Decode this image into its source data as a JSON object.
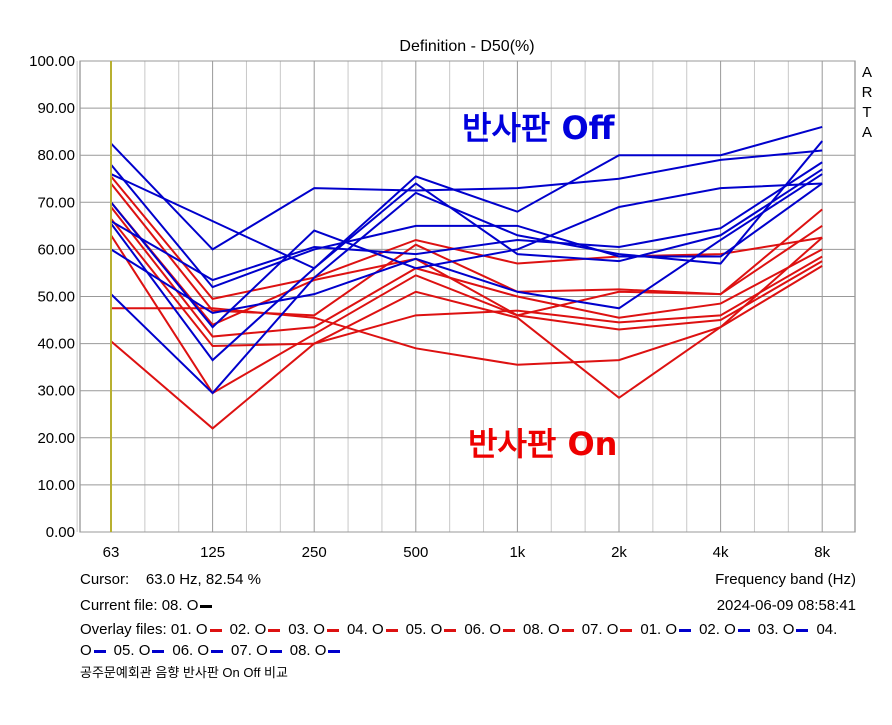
{
  "chart_data": {
    "type": "line",
    "title": "Definition - D50(%)",
    "xlabel": "Frequency band (Hz)",
    "ylabel": "",
    "categories": [
      "63",
      "125",
      "250",
      "500",
      "1k",
      "2k",
      "4k",
      "8k"
    ],
    "ylim": [
      0,
      100
    ],
    "yticks": [
      "0.00",
      "10.00",
      "20.00",
      "30.00",
      "40.00",
      "50.00",
      "60.00",
      "70.00",
      "80.00",
      "90.00",
      "100.00"
    ],
    "grid": true,
    "side_label": [
      "A",
      "R",
      "T",
      "A"
    ],
    "annotations": [
      {
        "text": "반사판 Off",
        "color": "#0000dd"
      },
      {
        "text": "반사판 On",
        "color": "#ee0000"
      }
    ],
    "series": [
      {
        "name": "01. O (On)",
        "color": "#dd1111",
        "values": [
          75.5,
          49.5,
          54,
          62,
          57,
          58.5,
          59,
          62.5
        ]
      },
      {
        "name": "02. O (On)",
        "color": "#dd1111",
        "values": [
          74,
          47,
          46,
          61,
          51,
          51.5,
          50.5,
          68.5
        ]
      },
      {
        "name": "03. O (On)",
        "color": "#dd1111",
        "values": [
          70,
          44,
          53.5,
          58,
          46,
          51,
          50.5,
          65
        ]
      },
      {
        "name": "04. O (On)",
        "color": "#dd1111",
        "values": [
          69,
          41.5,
          43.5,
          56,
          50,
          45.5,
          48.5,
          60
        ]
      },
      {
        "name": "05. O (On)",
        "color": "#dd1111",
        "values": [
          66.5,
          39.5,
          40,
          46,
          47,
          44.5,
          46,
          58.5
        ]
      },
      {
        "name": "06. O (On)",
        "color": "#dd1111",
        "values": [
          63,
          29.5,
          42,
          54.5,
          46,
          43,
          45,
          57.5
        ]
      },
      {
        "name": "08. O (On)",
        "color": "#dd1111",
        "values": [
          47.5,
          47.5,
          45.5,
          39,
          35.5,
          36.5,
          43.5,
          62.5
        ]
      },
      {
        "name": "07. O (On)",
        "color": "#dd1111",
        "values": [
          40.5,
          22,
          40,
          51,
          45.5,
          28.5,
          43.5,
          56.5
        ]
      },
      {
        "name": "01. O (Off)",
        "color": "#0000cc",
        "values": [
          82.5,
          60,
          73,
          72.5,
          73,
          75,
          79,
          81
        ]
      },
      {
        "name": "02. O (Off)",
        "color": "#0000cc",
        "values": [
          76,
          66,
          56,
          75.5,
          68,
          80,
          80,
          86
        ]
      },
      {
        "name": "03. O (Off)",
        "color": "#0000cc",
        "values": [
          78,
          52,
          60,
          65,
          65,
          58.5,
          58.5,
          74
        ]
      },
      {
        "name": "04. O (Off)",
        "color": "#0000cc",
        "values": [
          66,
          53.5,
          60.5,
          59,
          62,
          60.5,
          64.5,
          78.5
        ]
      },
      {
        "name": "05. O (Off)",
        "color": "#0000cc",
        "values": [
          70,
          43.5,
          64,
          56,
          60,
          69,
          73,
          74
        ]
      },
      {
        "name": "06. O (Off)",
        "color": "#0000cc",
        "values": [
          65.5,
          36.5,
          56,
          74,
          59,
          57.5,
          63,
          77
        ]
      },
      {
        "name": "07. O (Off)",
        "color": "#0000cc",
        "values": [
          60,
          46.5,
          50.5,
          58,
          51,
          47.5,
          62,
          76
        ]
      },
      {
        "name": "08. O (Off)",
        "color": "#0000cc",
        "values": [
          50.5,
          29.5,
          54,
          72,
          63,
          59,
          57,
          83
        ]
      }
    ]
  },
  "footer": {
    "cursor_label": "Cursor:",
    "cursor_value": "63.0 Hz, 82.54 %",
    "current_file_label": "Current file:",
    "current_file": "08. O",
    "datetime": "2024-06-09  08:58:41",
    "overlay_label": "Overlay files:",
    "overlay_files": [
      {
        "name": "01. O",
        "color": "#dd1111"
      },
      {
        "name": "02. O",
        "color": "#dd1111"
      },
      {
        "name": "03. O",
        "color": "#dd1111"
      },
      {
        "name": "04. O",
        "color": "#dd1111"
      },
      {
        "name": "05. O",
        "color": "#dd1111"
      },
      {
        "name": "06. O",
        "color": "#dd1111"
      },
      {
        "name": "08. O",
        "color": "#dd1111"
      },
      {
        "name": "07. O",
        "color": "#dd1111"
      },
      {
        "name": "01. O",
        "color": "#0000cc"
      },
      {
        "name": "02. O",
        "color": "#0000cc"
      },
      {
        "name": "03. O",
        "color": "#0000cc"
      },
      {
        "name": "04. O",
        "color": "#0000cc"
      },
      {
        "name": "05. O",
        "color": "#0000cc"
      },
      {
        "name": "06. O",
        "color": "#0000cc"
      },
      {
        "name": "07. O",
        "color": "#0000cc"
      },
      {
        "name": "08. O",
        "color": "#0000cc"
      }
    ],
    "caption": "공주문예회관 음향 반사판 On Off 비교"
  }
}
